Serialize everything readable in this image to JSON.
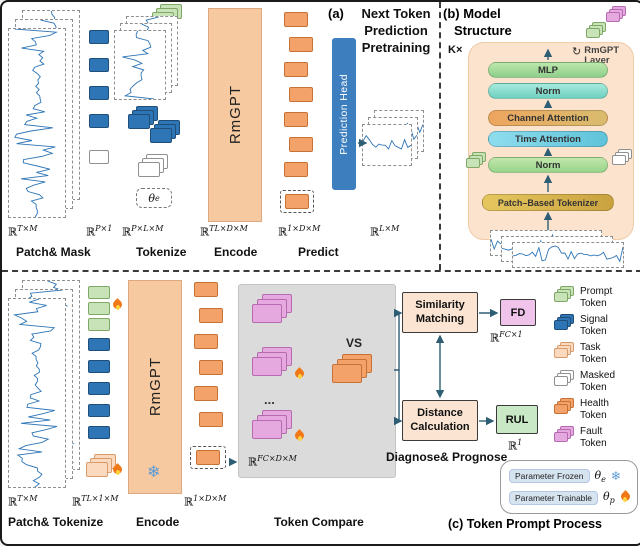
{
  "colors": {
    "prompt_token": "#C9E3B8",
    "signal_token": "#2E75B6",
    "task_token": "#FAD9BE",
    "masked_token": "#FFFFFF",
    "health_token": "#F3A269",
    "fault_token": "#E5A9E0",
    "rmgpt_block": "#F6C9A0",
    "prediction_head": "#3D7EBF",
    "arrow": "#2E5E73",
    "model_panel_bg": "#FBE3CE",
    "compare_panel_bg": "#DBDBDB",
    "fd_box": "#EFC3EA",
    "rul_box": "#C9E8C5",
    "process_box": "#FBE5D2"
  },
  "panel_a": {
    "label": "(a)",
    "title_lines": [
      "Next Token",
      "Prediction",
      "Pretraining"
    ],
    "rmgpt_label": "RmGPT",
    "prediction_head_label": "Prediction Head",
    "theta": {
      "base": "θ",
      "sub": "e"
    },
    "dims": {
      "input": {
        "base": "ℝ",
        "sup": "T×M"
      },
      "patch": {
        "base": "ℝ",
        "sup": "P×1"
      },
      "tokenize": {
        "base": "ℝ",
        "sup": "P×L×M"
      },
      "encode": {
        "base": "ℝ",
        "sup": "TL×D×M"
      },
      "predict": {
        "base": "ℝ",
        "sup": "1×D×M"
      },
      "output": {
        "base": "ℝ",
        "sup": "L×M"
      }
    },
    "stages": {
      "patch_mask": "Patch& Mask",
      "tokenize": "Tokenize",
      "encode": "Encode",
      "predict": "Predict"
    }
  },
  "panel_b": {
    "title_lines": [
      "(b) Model",
      "Structure"
    ],
    "k_label": "K×",
    "layer_lines": [
      "RmGPT",
      "Layer"
    ],
    "loop_icon": "↻",
    "blocks": {
      "mlp": "MLP",
      "norm_top": "Norm",
      "channel_attention": "Channel Attention",
      "time_attention": "Time Attention",
      "norm_bottom": "Norm",
      "tokenizer": "Patch–Based Tokenizer"
    }
  },
  "panel_c": {
    "label": "(c) Token Prompt Process",
    "rmgpt_label": "RmGPT",
    "snowflake_icon": "❄",
    "vs_label": "VS",
    "ellipsis": "...",
    "stages": {
      "patch_tokenize": "Patch& Tokenize",
      "encode": "Encode",
      "token_compare": "Token Compare",
      "diagnose_prognose": "Diagnose& Prognose"
    },
    "similarity_lines": [
      "Similarity",
      "Matching"
    ],
    "distance_lines": [
      "Distance",
      "Calculation"
    ],
    "fd_label": "FD",
    "rul_label": "RUL",
    "dims": {
      "input": {
        "base": "ℝ",
        "sup": "T×M"
      },
      "tokens": {
        "base": "ℝ",
        "sup": "TL×1×M"
      },
      "encode": {
        "base": "ℝ",
        "sup": "1×D×M"
      },
      "compare": {
        "base": "ℝ",
        "sup": "FC×D×M"
      },
      "fd": {
        "base": "ℝ",
        "sup": "FC×1"
      },
      "rul": {
        "base": "ℝ",
        "sup": "1"
      }
    }
  },
  "legend": {
    "items": [
      {
        "label_lines": [
          "Prompt",
          "Token"
        ],
        "color": "#C9E3B8"
      },
      {
        "label_lines": [
          "Signal",
          "Token"
        ],
        "color": "#2E75B6"
      },
      {
        "label_lines": [
          "Task",
          "Token"
        ],
        "color": "#FAD9BE"
      },
      {
        "label_lines": [
          "Masked",
          "Token"
        ],
        "color": "#FFFFFF"
      },
      {
        "label_lines": [
          "Health",
          "Token"
        ],
        "color": "#F3A269"
      },
      {
        "label_lines": [
          "Fault",
          "Token"
        ],
        "color": "#E5A9E0"
      }
    ]
  },
  "param_box": {
    "frozen": {
      "label": "Parameter Frozen",
      "symbol": "θ",
      "sub": "e",
      "icon": "❄"
    },
    "trainable": {
      "label": "Parameter Trainable",
      "symbol": "θ",
      "sub": "p"
    }
  }
}
